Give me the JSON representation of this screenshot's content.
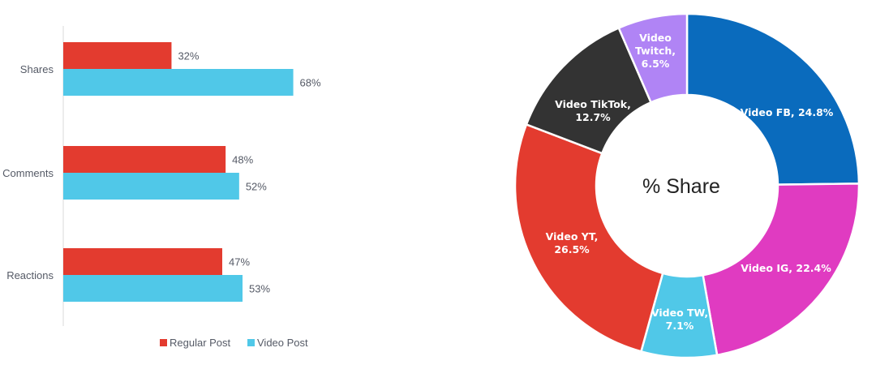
{
  "chart_data": [
    {
      "type": "bar",
      "orientation": "horizontal",
      "categories": [
        "Shares",
        "Comments",
        "Reactions"
      ],
      "series": [
        {
          "name": "Regular Post",
          "values": [
            32,
            48,
            47
          ],
          "labels": [
            "32%",
            "48%",
            "47%"
          ],
          "color": "#e33b2f"
        },
        {
          "name": "Video Post",
          "values": [
            68,
            52,
            53
          ],
          "labels": [
            "68%",
            "52%",
            "53%"
          ],
          "color": "#50c8e8"
        }
      ],
      "xlim": [
        0,
        100
      ],
      "unit": "%",
      "grid": false,
      "legend": "bottom"
    },
    {
      "type": "pie",
      "donut": true,
      "center_label": "% Share",
      "slices": [
        {
          "label": "Video FB, 24.8%",
          "value": 24.8,
          "color": "#0a6bbd"
        },
        {
          "label": "Video IG, 22.4%",
          "value": 22.4,
          "color": "#e03bc1"
        },
        {
          "label": "Video TW, 7.1%",
          "value": 7.1,
          "color": "#50c8e8"
        },
        {
          "label": "Video YT, 26.5%",
          "value": 26.5,
          "color": "#e33b2f"
        },
        {
          "label": "Video TikTok, 12.7%",
          "value": 12.7,
          "color": "#333333"
        },
        {
          "label": "Video Twitch, 6.5%",
          "value": 6.5,
          "color": "#b084f5"
        }
      ],
      "legend": "none"
    }
  ]
}
